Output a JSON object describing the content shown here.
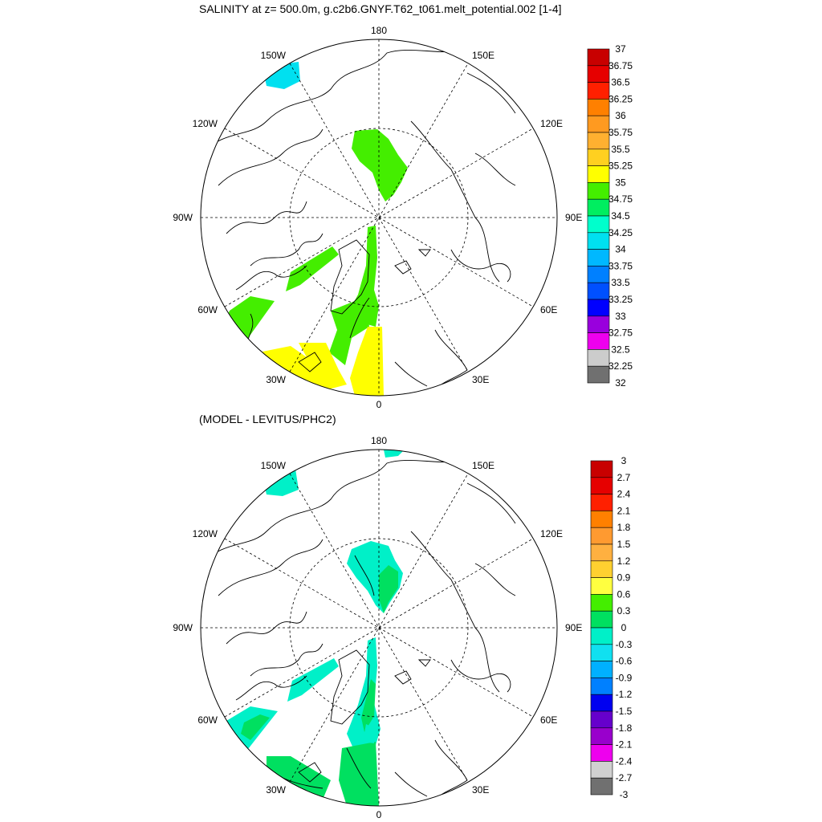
{
  "panels": [
    {
      "title": "SALINITY at z= 500.0m, g.c2b6.GNYF.T62_t061.melt_potential.002 [1-4]",
      "lon_labels": {
        "top": "180",
        "bottom": "0",
        "left": "90W",
        "right": "90E",
        "ul1": "150W",
        "ul2": "120W",
        "ur1": "150E",
        "ur2": "120E",
        "ll1": "60W",
        "ll2": "30W",
        "lr1": "60E",
        "lr2": "30E"
      },
      "colorbar": {
        "labels": [
          "37",
          "36.75",
          "36.5",
          "36.25",
          "36",
          "35.75",
          "35.5",
          "35.25",
          "35",
          "34.75",
          "34.5",
          "34.25",
          "34",
          "33.75",
          "33.5",
          "33.25",
          "33",
          "32.75",
          "32.5",
          "32.25",
          "32"
        ],
        "colors": [
          "#c80000",
          "#e60000",
          "#ff2000",
          "#ff8000",
          "#ff9a20",
          "#ffb030",
          "#ffd020",
          "#ffff00",
          "#44ee00",
          "#00ee60",
          "#00ffcc",
          "#00e0f0",
          "#00b8ff",
          "#0080ff",
          "#0050ff",
          "#0000ff",
          "#9900dd",
          "#ee00ee",
          "#cccccc",
          "#707070"
        ]
      },
      "fields": [
        {
          "name": "north-pacific-patch",
          "color": "#00e0f0"
        },
        {
          "name": "canada-basin-patch",
          "color": "#44ee00"
        },
        {
          "name": "fram-strait-tongue",
          "color": "#44ee00"
        },
        {
          "name": "baffin-bay-strip",
          "color": "#44ee00"
        },
        {
          "name": "labrador-sea-patch",
          "color": "#44ee00"
        },
        {
          "name": "irminger-patch",
          "color": "#44ee00"
        },
        {
          "name": "atlantic-subpolar-patch",
          "color": "#ffff00"
        },
        {
          "name": "norwegian-sea-patch",
          "color": "#ffff00"
        },
        {
          "name": "greenland-sea-patch",
          "color": "#44ee00"
        }
      ]
    },
    {
      "title": "(MODEL - LEVITUS/PHC2)",
      "lon_labels": {
        "top": "180",
        "bottom": "0",
        "left": "90W",
        "right": "90E",
        "ul1": "150W",
        "ul2": "120W",
        "ur1": "150E",
        "ur2": "120E",
        "ll1": "60W",
        "ll2": "30W",
        "lr1": "60E",
        "lr2": "30E"
      },
      "colorbar": {
        "labels": [
          "3",
          "2.7",
          "2.4",
          "2.1",
          "1.8",
          "1.5",
          "1.2",
          "0.9",
          "0.6",
          "0.3",
          "0",
          "-0.3",
          "-0.6",
          "-0.9",
          "-1.2",
          "-1.5",
          "-1.8",
          "-2.1",
          "-2.4",
          "-2.7",
          "-3"
        ],
        "colors": [
          "#c80000",
          "#e60000",
          "#ff2000",
          "#ff8000",
          "#ff9a30",
          "#ffb040",
          "#ffd030",
          "#ffff40",
          "#44ee00",
          "#00e060",
          "#00f0c8",
          "#10e0f0",
          "#00b0ff",
          "#0080ff",
          "#0000f0",
          "#6600cc",
          "#9900cc",
          "#ee00ee",
          "#d0d0d0",
          "#707070"
        ]
      },
      "fields": [
        {
          "name": "north-pacific-patch",
          "color": "#00f0c8"
        },
        {
          "name": "bering-strait-patch",
          "color": "#00f0c8"
        },
        {
          "name": "canada-basin-patch",
          "color": "#00f0c8"
        },
        {
          "name": "canada-basin-core",
          "color": "#00e060"
        },
        {
          "name": "fram-strait-tongue",
          "color": "#00f0c8"
        },
        {
          "name": "fram-strait-core",
          "color": "#00e060"
        },
        {
          "name": "baffin-bay-strip",
          "color": "#00f0c8"
        },
        {
          "name": "labrador-sea-patch",
          "color": "#00f0c8"
        },
        {
          "name": "labrador-sea-core",
          "color": "#00e060"
        },
        {
          "name": "atlantic-subpolar-patch",
          "color": "#00e060"
        },
        {
          "name": "norwegian-sea-patch",
          "color": "#00e060"
        },
        {
          "name": "greenland-sea-patch",
          "color": "#00f0c8"
        }
      ]
    }
  ]
}
